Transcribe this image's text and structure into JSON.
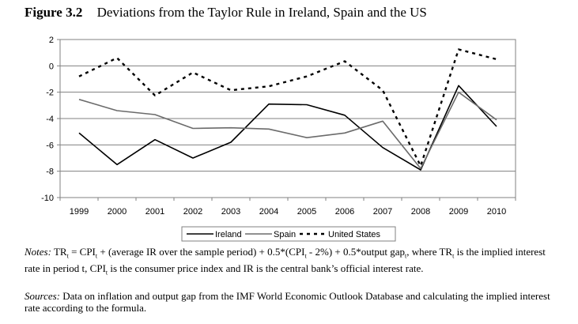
{
  "figure": {
    "label": "Figure 3.2",
    "title": "Deviations from the Taylor Rule in Ireland, Spain and the US"
  },
  "notes": {
    "lead": "Notes:",
    "formula_html": "TR<sub>t</sub> = CPI<sub>t</sub> + (average IR over the sample period) + 0.5*(CPI<sub>t</sub> - 2%) + 0.5*output gap<sub>t</sub>, where TR<sub>t</sub> is the implied interest rate in period t, CPI<sub>t</sub> is the consumer price index and IR is the central bank’s official interest rate."
  },
  "sources": {
    "lead": "Sources:",
    "text": "Data on inflation and output gap from the IMF World Economic Outlook Database and calculating the implied interest rate according to the formula."
  },
  "chart_data": {
    "type": "line",
    "title": "Deviations from the Taylor Rule in Ireland, Spain and the US",
    "xlabel": "",
    "ylabel": "",
    "ylim": [
      -10,
      2
    ],
    "yticks": [
      2,
      0,
      -2,
      -4,
      -6,
      -8,
      -10
    ],
    "grid": "horizontal",
    "legend_position": "bottom-center",
    "x": [
      "1999",
      "2000",
      "2001",
      "2002",
      "2003",
      "2004",
      "2005",
      "2006",
      "2007",
      "2008",
      "2009",
      "2010"
    ],
    "series": [
      {
        "name": "Ireland",
        "style": "solid",
        "color": "#000000",
        "values": [
          -5.1,
          -7.5,
          -5.6,
          -7.0,
          -5.8,
          -2.9,
          -2.95,
          -3.75,
          -6.2,
          -7.9,
          -1.5,
          -4.6
        ]
      },
      {
        "name": "Spain",
        "style": "solid",
        "color": "#6b6b6b",
        "values": [
          -2.55,
          -3.4,
          -3.7,
          -4.75,
          -4.7,
          -4.8,
          -5.45,
          -5.1,
          -4.2,
          -7.8,
          -2.0,
          -4.1
        ]
      },
      {
        "name": "United States",
        "style": "dashed",
        "color": "#000000",
        "values": [
          -0.8,
          0.6,
          -2.25,
          -0.5,
          -1.85,
          -1.55,
          -0.8,
          0.35,
          -1.85,
          -7.6,
          1.25,
          0.5
        ]
      }
    ]
  }
}
